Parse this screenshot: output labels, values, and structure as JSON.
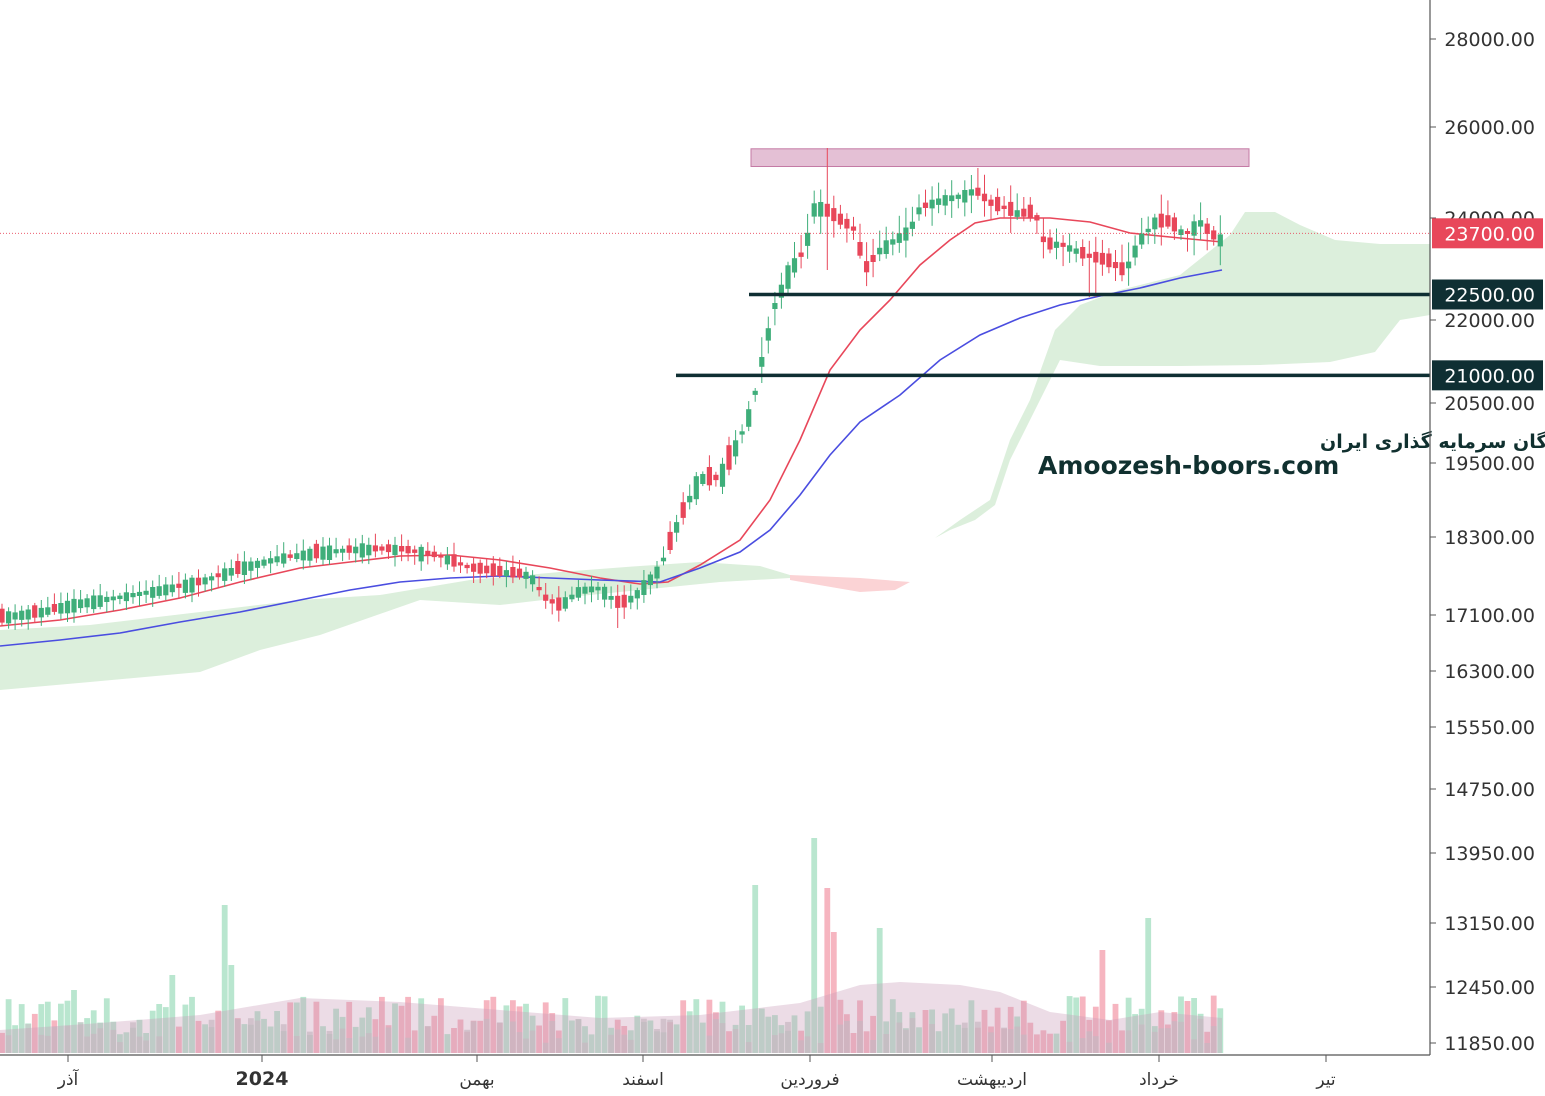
{
  "chart_data": {
    "type": "candlestick",
    "title": "",
    "y_axis": {
      "position": "right",
      "ticks": [
        28000,
        26000,
        24000,
        22000,
        20500,
        19500,
        18300,
        17100,
        16300,
        15550,
        14750,
        13950,
        13150,
        12450,
        11850
      ],
      "tick_labels": [
        "28000.00",
        "26000.00",
        "24000.00",
        "22000.00",
        "20500.00",
        "19500.00",
        "18300.00",
        "17100.00",
        "16300.00",
        "15550.00",
        "14750.00",
        "13950.00",
        "13150.00",
        "12450.00",
        "11850.00"
      ],
      "scale": "log",
      "range": [
        11650,
        30000
      ]
    },
    "x_axis": {
      "labels": [
        "آذر",
        "2024",
        "بهمن",
        "اسفند",
        "فروردین",
        "اردیبهشت",
        "خرداد",
        "تیر"
      ],
      "bold_label": "2024"
    },
    "last_price": {
      "value": 23700,
      "label": "23700.00",
      "color": "#e8475a"
    },
    "levels": [
      {
        "value": 22500,
        "label": "22500.00",
        "color": "#0f2f33"
      },
      {
        "value": 21000,
        "label": "21000.00",
        "color": "#0f2f33"
      }
    ],
    "resistance_zone": {
      "low": 25200,
      "high": 25500,
      "color": "#d9a5c3"
    },
    "series": [
      {
        "name": "",
        "kind": "ema_short",
        "color": "#e8475a"
      },
      {
        "name": "",
        "kind": "ema_long",
        "color": "#4a4de0"
      }
    ],
    "cloud_colors": {
      "bullish": "#dcefdc",
      "bearish": "#fbd3d5"
    },
    "candle_colors": {
      "up": "#3fae7a",
      "down": "#e8475a"
    },
    "volume_colors": {
      "up": "#a8e0c3",
      "down": "#f4a3b0",
      "avg": "#c7c7c7"
    },
    "watermark": {
      "line1": "انجمن خبرگان سرمایه گذاری ایران",
      "line2": "Amoozesh-boors.com"
    }
  }
}
